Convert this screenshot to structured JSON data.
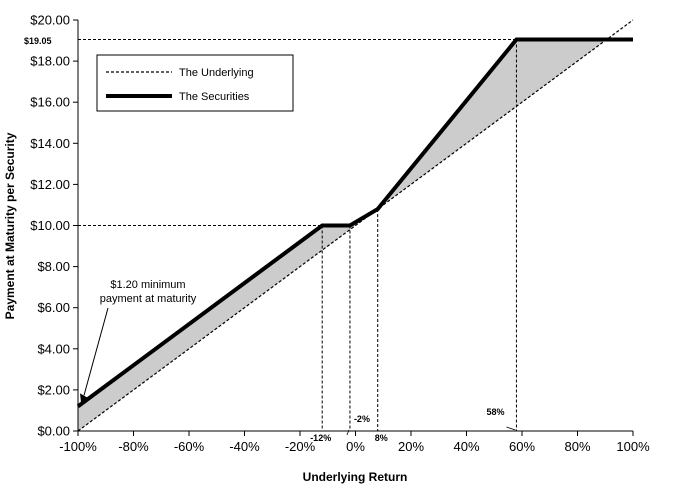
{
  "chart_data": {
    "type": "line",
    "xlabel": "Underlying Return",
    "ylabel": "Payment at Maturity per Security",
    "xlim": [
      -100,
      100
    ],
    "ylim": [
      0,
      20
    ],
    "x_ticks": [
      "-100%",
      "-80%",
      "-60%",
      "-40%",
      "-20%",
      "0%",
      "20%",
      "40%",
      "60%",
      "80%",
      "100%"
    ],
    "y_ticks": [
      "$0.00",
      "$2.00",
      "$4.00",
      "$6.00",
      "$8.00",
      "$10.00",
      "$12.00",
      "$14.00",
      "$16.00",
      "$18.00",
      "$20.00"
    ],
    "x_tick_values": [
      -100,
      -80,
      -60,
      -40,
      -20,
      0,
      20,
      40,
      60,
      80,
      100
    ],
    "y_tick_values": [
      0,
      2,
      4,
      6,
      8,
      10,
      12,
      14,
      16,
      18,
      20
    ],
    "grid": false,
    "legend_position": "top-left",
    "series": [
      {
        "name": "The Underlying",
        "style": "dashed",
        "x": [
          -100,
          100
        ],
        "y": [
          0,
          20
        ]
      },
      {
        "name": "The Securities",
        "style": "solid-thick",
        "x": [
          -100,
          -12,
          -2,
          8,
          58,
          100
        ],
        "y": [
          1.2,
          10.0,
          10.0,
          10.8,
          19.05,
          19.05
        ]
      }
    ],
    "reference_points": [
      {
        "label": "-12%",
        "x": -12,
        "y": 10.0
      },
      {
        "label": "-2%",
        "x": -2,
        "y": 10.0
      },
      {
        "label": "8%",
        "x": 8,
        "y": 10.8
      },
      {
        "label": "58%",
        "x": 58,
        "y": 19.05
      }
    ],
    "cap_label": "$19.05",
    "cap_value": 19.05,
    "annotation": {
      "lines": [
        "$1.20 minimum",
        "payment at maturity"
      ],
      "target_x": -100,
      "target_y": 1.2
    },
    "colors": {
      "fill": "#cccccc",
      "line": "#000000"
    }
  }
}
